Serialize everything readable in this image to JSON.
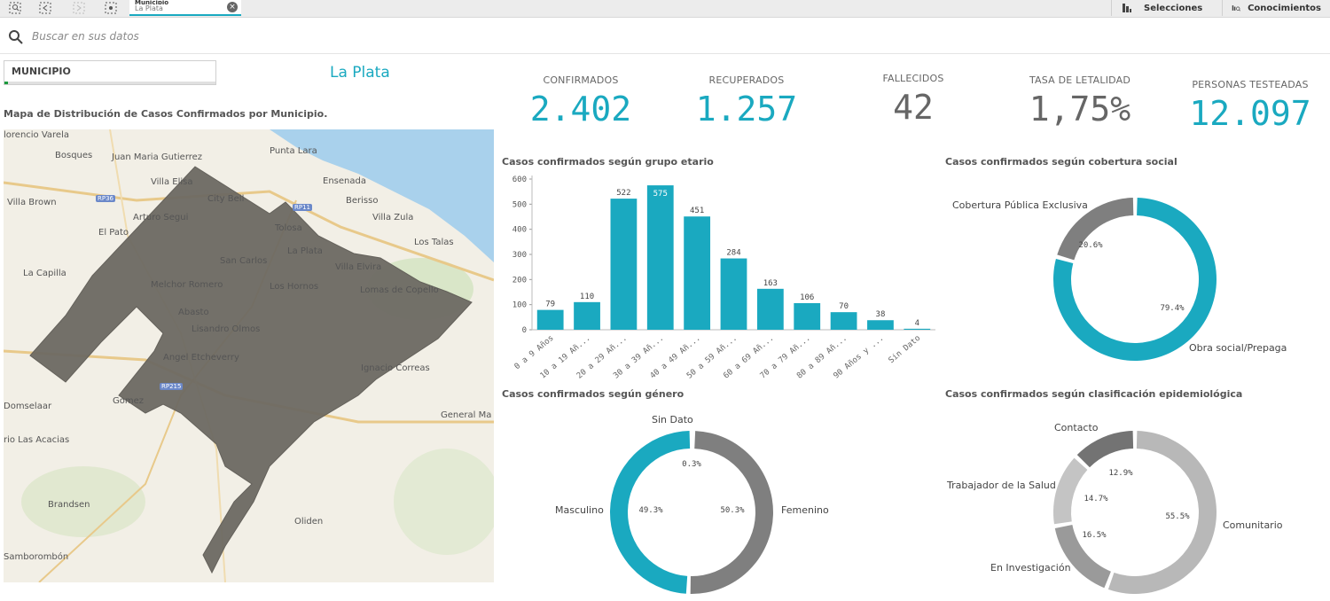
{
  "toolbar": {
    "selection_tab_field": "Municipio",
    "selection_tab_value": "La Plata",
    "selecciones_label": "Selecciones",
    "conocimientos_label": "Conocimientos"
  },
  "search": {
    "placeholder": "Buscar en sus datos"
  },
  "filter": {
    "field_label": "MUNICIPIO",
    "selected_city": "La Plata"
  },
  "map": {
    "title": "Mapa de Distribución de Casos Confirmados por Municipio.",
    "places": [
      "lorencio Varela",
      "Bosques",
      "Juan Maria Gutierrez",
      "Punta Lara",
      "Villa Elisa",
      "Ensenada",
      "Villa Brown",
      "City Bell",
      "Berisso",
      "Arturo Segui",
      "Villa Zula",
      "El Pato",
      "Tolosa",
      "Los Talas",
      "San Carlos",
      "La Plata",
      "Villa Elvira",
      "La Capilla",
      "Melchor Romero",
      "Los Hornos",
      "Lomas de Copello",
      "Abasto",
      "Lisandro Olmos",
      "Angel Etcheverry",
      "Ignacio Correas",
      "Domselaar",
      "Gomez",
      "General Ma",
      "rio Las Acacias",
      "Brandsen",
      "Oliden",
      "Samborombón"
    ],
    "roads": [
      "RP36",
      "RP11",
      "RP215"
    ]
  },
  "kpis": [
    {
      "label": "CONFIRMADOS",
      "value": "2.402",
      "color": "#1aa9c0"
    },
    {
      "label": "RECUPERADOS",
      "value": "1.257",
      "color": "#1aa9c0"
    },
    {
      "label": "FALLECIDOS",
      "value": "42",
      "color": "#666666"
    },
    {
      "label": "TASA DE LETALIDAD",
      "value": "1,75%",
      "color": "#666666"
    },
    {
      "label": "PERSONAS TESTEADAS",
      "value": "12.097",
      "color": "#1aa9c0"
    }
  ],
  "chart_titles": {
    "age": "Casos confirmados según grupo etario",
    "coverage": "Casos confirmados según cobertura social",
    "gender": "Casos confirmados según género",
    "epi": "Casos confirmados según clasificación epidemiológica"
  },
  "chart_data": [
    {
      "type": "bar",
      "title": "Casos confirmados según grupo etario",
      "categories": [
        "0 a 9 Años",
        "10 a 19 Añ...",
        "20 a 29 Añ...",
        "30 a 39 Añ...",
        "40 a 49 Añ...",
        "50 a 59 Añ...",
        "60 a 69 Añ...",
        "70 a 79 Añ...",
        "80 a 89 Añ...",
        "90 Años y ...",
        "Sin Dato"
      ],
      "values": [
        79,
        110,
        522,
        575,
        451,
        284,
        163,
        106,
        70,
        38,
        4
      ],
      "yticks": [
        0,
        100,
        200,
        300,
        400,
        500,
        600
      ],
      "ylim": [
        0,
        600
      ],
      "color": "#1aa9c0",
      "highlight_index": 3
    },
    {
      "type": "pie",
      "title": "Casos confirmados según cobertura social",
      "labels": [
        "Cobertura Pública Exclusiva",
        "Obra social/Prepaga"
      ],
      "values": [
        20.6,
        79.4
      ],
      "value_labels": [
        "20.6%",
        "79.4%"
      ],
      "colors": [
        "#7f7f7f",
        "#1aa9c0"
      ]
    },
    {
      "type": "pie",
      "title": "Casos confirmados según género",
      "labels": [
        "Sin Dato",
        "Femenino",
        "Masculino"
      ],
      "values": [
        0.3,
        50.3,
        49.3
      ],
      "value_labels": [
        "0.3%",
        "50.3%",
        "49.3%"
      ],
      "colors": [
        "#b5b5b5",
        "#7f7f7f",
        "#1aa9c0"
      ]
    },
    {
      "type": "pie",
      "title": "Casos confirmados según clasificación epidemiológica",
      "labels": [
        "Comunitario",
        "En Investigación",
        "Trabajador de la Salud",
        "Contacto"
      ],
      "values": [
        55.5,
        16.5,
        14.7,
        12.9
      ],
      "value_labels": [
        "55.5%",
        "16.5%",
        "14.7%",
        "12.9%"
      ],
      "colors": [
        "#b8b8b8",
        "#9a9a9a",
        "#c4c4c4",
        "#737373"
      ]
    }
  ]
}
